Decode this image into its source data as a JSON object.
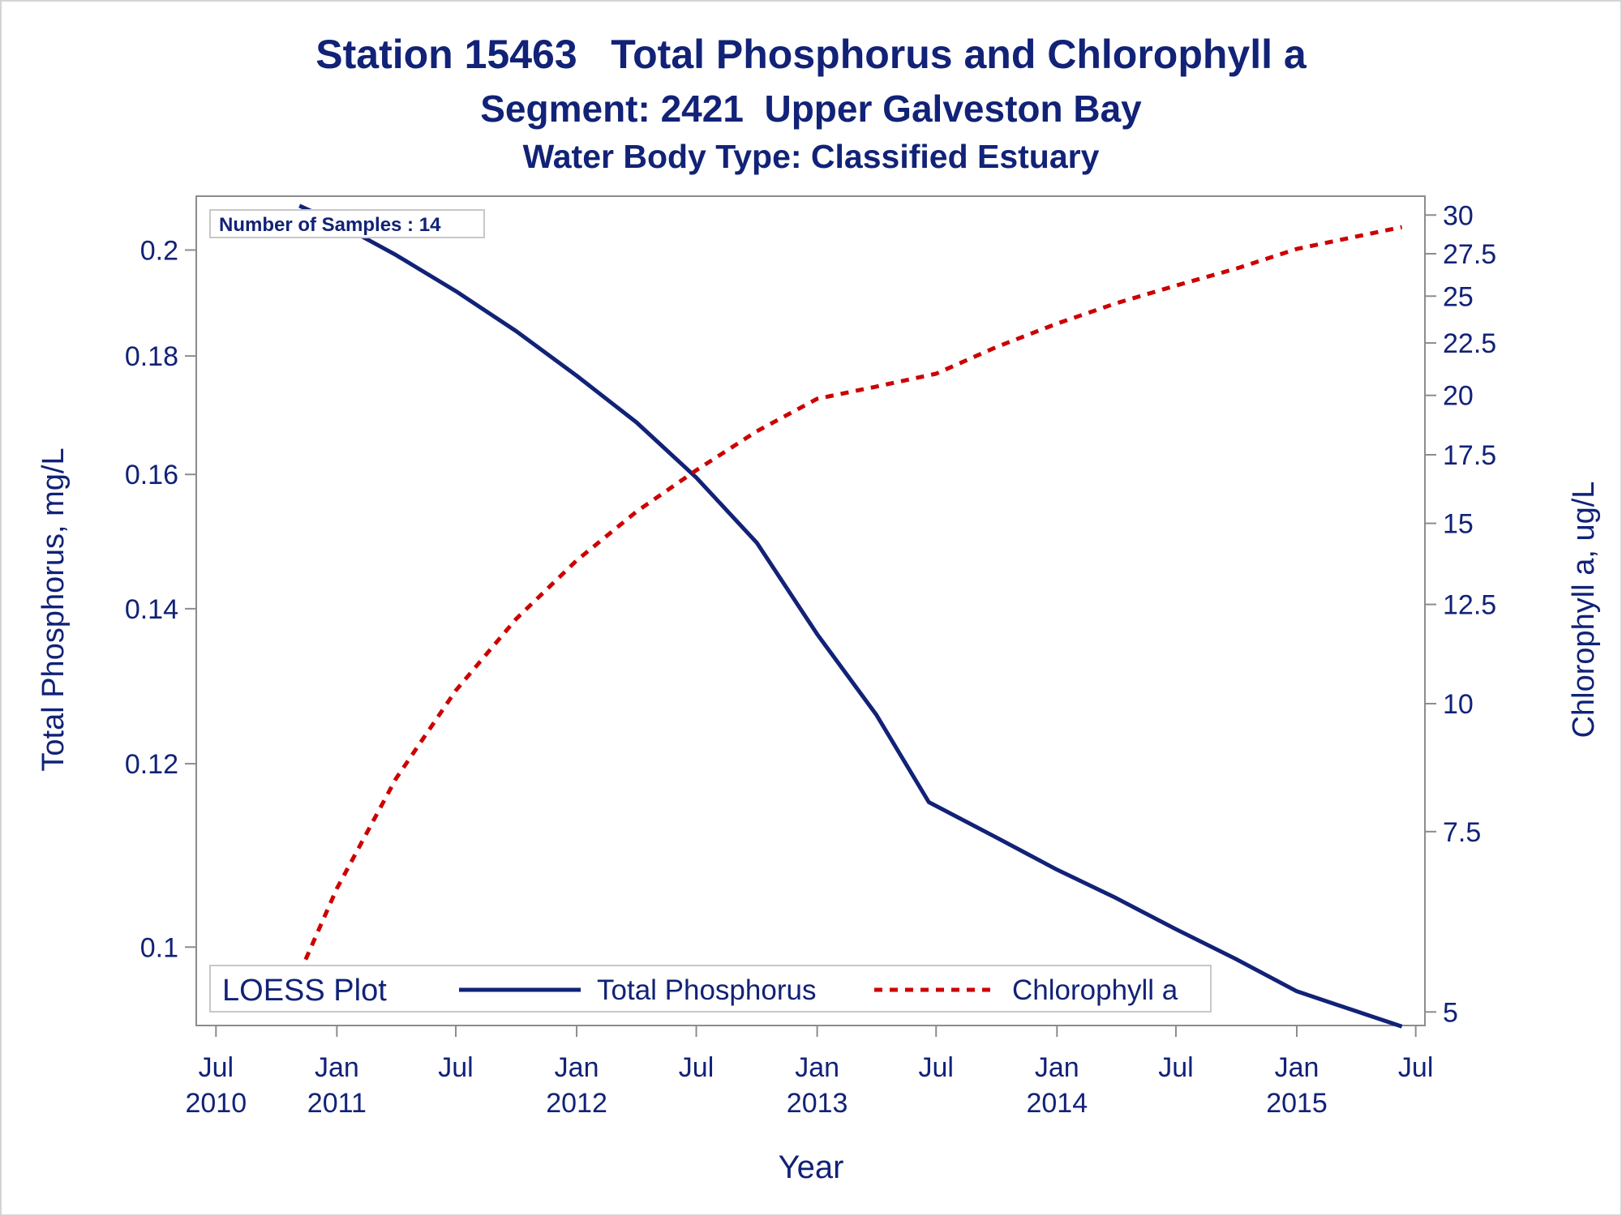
{
  "chart_data": {
    "type": "line",
    "title": "Station 15463   Total Phosphorus and Chlorophyll a",
    "subtitle": "Segment: 2421  Upper Galveston Bay",
    "subtitle2": "Water Body Type: Classified Estuary",
    "xlabel": "Year",
    "ylabel_left": "Total Phosphorus, mg/L",
    "ylabel_right": "Chlorophyll a, ug/L",
    "y_scale": "log",
    "xlim": [
      "2010-06-01",
      "2015-07-15"
    ],
    "ylim_left": [
      0.0925,
      0.211
    ],
    "ylim_right": [
      4.85,
      31.3
    ],
    "x_ticks": [
      {
        "date": "2010-07-01",
        "label": "Jul",
        "year": "2010"
      },
      {
        "date": "2011-01-01",
        "label": "Jan",
        "year": "2011"
      },
      {
        "date": "2011-07-01",
        "label": "Jul",
        "year": ""
      },
      {
        "date": "2012-01-01",
        "label": "Jan",
        "year": "2012"
      },
      {
        "date": "2012-07-01",
        "label": "Jul",
        "year": ""
      },
      {
        "date": "2013-01-01",
        "label": "Jan",
        "year": "2013"
      },
      {
        "date": "2013-07-01",
        "label": "Jul",
        "year": ""
      },
      {
        "date": "2014-01-01",
        "label": "Jan",
        "year": "2014"
      },
      {
        "date": "2014-07-01",
        "label": "Jul",
        "year": ""
      },
      {
        "date": "2015-01-01",
        "label": "Jan",
        "year": "2015"
      },
      {
        "date": "2015-07-01",
        "label": "Jul",
        "year": ""
      }
    ],
    "y_ticks_left": [
      0.1,
      0.12,
      0.14,
      0.16,
      0.18,
      0.2
    ],
    "y_ticks_left_labels": [
      "0.1",
      "0.12",
      "0.14",
      "0.16",
      "0.18",
      "0.2"
    ],
    "y_ticks_right": [
      5,
      7.5,
      10,
      12.5,
      15,
      17.5,
      20,
      22.5,
      25,
      27.5,
      30
    ],
    "y_ticks_right_labels": [
      "5",
      "7.5",
      "10",
      "12.5",
      "15",
      "17.5",
      "20",
      "22.5",
      "25",
      "27.5",
      "30"
    ],
    "annotation": "Number of Samples : 14",
    "legend": {
      "title": "LOESS Plot",
      "placement": "bottom-left, inside plot"
    },
    "series": [
      {
        "name": "Total Phosphorus",
        "axis": "left",
        "color": "#112277",
        "style": "solid",
        "points": [
          [
            "2010-11-05",
            0.209
          ],
          [
            "2011-01-01",
            0.2055
          ],
          [
            "2011-04-01",
            0.199
          ],
          [
            "2011-07-01",
            0.192
          ],
          [
            "2011-10-01",
            0.1845
          ],
          [
            "2012-01-01",
            0.1765
          ],
          [
            "2012-04-01",
            0.1685
          ],
          [
            "2012-07-01",
            0.1595
          ],
          [
            "2012-10-01",
            0.1495
          ],
          [
            "2013-01-01",
            0.1365
          ],
          [
            "2013-04-01",
            0.126
          ],
          [
            "2013-06-20",
            0.1155
          ],
          [
            "2013-10-01",
            0.1115
          ],
          [
            "2014-01-01",
            0.108
          ],
          [
            "2014-04-01",
            0.105
          ],
          [
            "2014-07-01",
            0.1018
          ],
          [
            "2014-10-01",
            0.0988
          ],
          [
            "2015-01-01",
            0.0957
          ],
          [
            "2015-06-10",
            0.0924
          ]
        ]
      },
      {
        "name": "Chlorophyll a",
        "axis": "right",
        "color": "#cc0000",
        "style": "dashed",
        "points": [
          [
            "2010-11-05",
            5.45
          ],
          [
            "2011-01-01",
            6.6
          ],
          [
            "2011-04-01",
            8.45
          ],
          [
            "2011-07-01",
            10.3
          ],
          [
            "2011-10-01",
            12.1
          ],
          [
            "2012-01-01",
            13.8
          ],
          [
            "2012-04-01",
            15.4
          ],
          [
            "2012-07-01",
            16.9
          ],
          [
            "2012-10-01",
            18.45
          ],
          [
            "2013-01-01",
            19.85
          ],
          [
            "2013-04-01",
            20.4
          ],
          [
            "2013-07-01",
            21.0
          ],
          [
            "2013-10-01",
            22.3
          ],
          [
            "2014-01-01",
            23.5
          ],
          [
            "2014-04-01",
            24.6
          ],
          [
            "2014-07-01",
            25.6
          ],
          [
            "2014-10-01",
            26.6
          ],
          [
            "2015-01-01",
            27.8
          ],
          [
            "2015-06-10",
            29.2
          ]
        ]
      }
    ]
  }
}
